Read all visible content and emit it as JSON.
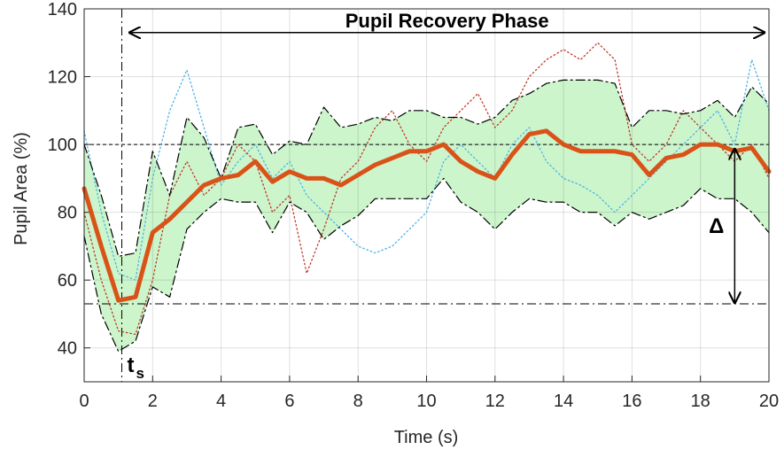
{
  "chart_data": {
    "type": "line",
    "xlabel": "Time (s)",
    "ylabel": "Pupil Area (%)",
    "xlim": [
      0,
      20
    ],
    "ylim": [
      30,
      140
    ],
    "xticks": [
      0,
      2,
      4,
      6,
      8,
      10,
      12,
      14,
      16,
      18,
      20
    ],
    "yticks": [
      40,
      60,
      80,
      100,
      120,
      140
    ],
    "grid": true,
    "x": [
      0,
      0.5,
      1,
      1.5,
      2,
      2.5,
      3,
      3.5,
      4,
      4.5,
      5,
      5.5,
      6,
      6.5,
      7,
      7.5,
      8,
      8.5,
      9,
      9.5,
      10,
      10.5,
      11,
      11.5,
      12,
      12.5,
      13,
      13.5,
      14,
      14.5,
      15,
      15.5,
      16,
      16.5,
      17,
      17.5,
      18,
      18.5,
      19,
      19.5,
      20
    ],
    "series": [
      {
        "role": "trace",
        "color": "#4db3e6",
        "values": [
          104,
          80,
          62,
          60,
          90,
          110,
          122,
          105,
          88,
          95,
          100,
          90,
          95,
          85,
          80,
          75,
          70,
          68,
          70,
          75,
          80,
          95,
          100,
          95,
          90,
          100,
          105,
          95,
          90,
          88,
          85,
          80,
          85,
          90,
          95,
          100,
          105,
          110,
          100,
          125,
          110
        ]
      },
      {
        "role": "trace",
        "color": "#c0392b",
        "values": [
          80,
          60,
          45,
          44,
          60,
          85,
          95,
          85,
          90,
          100,
          95,
          80,
          85,
          62,
          75,
          90,
          95,
          105,
          110,
          100,
          95,
          105,
          110,
          115,
          105,
          110,
          120,
          125,
          128,
          125,
          130,
          125,
          100,
          95,
          100,
          110,
          105,
          100,
          95,
          100,
          90
        ]
      },
      {
        "role": "upper",
        "color": "#000000",
        "values": [
          100,
          85,
          67,
          68,
          98,
          85,
          108,
          102,
          90,
          105,
          106,
          97,
          101,
          100,
          111,
          105,
          106,
          108,
          107,
          110,
          110,
          108,
          108,
          106,
          108,
          113,
          115,
          118,
          119,
          119,
          119,
          118,
          105,
          110,
          110,
          109,
          110,
          113,
          108,
          117,
          112
        ]
      },
      {
        "role": "lower",
        "color": "#000000",
        "values": [
          73,
          50,
          39,
          42,
          58,
          55,
          75,
          80,
          84,
          83,
          83,
          74,
          83,
          80,
          72,
          76,
          79,
          84,
          84,
          84,
          84,
          90,
          83,
          80,
          75,
          80,
          84,
          83,
          83,
          80,
          80,
          76,
          80,
          78,
          80,
          82,
          87,
          84,
          84,
          80,
          74
        ]
      },
      {
        "role": "mean",
        "color": "#d95319",
        "values": [
          87,
          70,
          54,
          55,
          74,
          78,
          83,
          88,
          90,
          91,
          95,
          89,
          92,
          90,
          90,
          88,
          91,
          94,
          96,
          98,
          98,
          100,
          95,
          92,
          90,
          97,
          103,
          104,
          100,
          98,
          98,
          98,
          97,
          91,
          96,
          97,
          100,
          100,
          98,
          99,
          92
        ]
      }
    ],
    "band_color": "#ccf5cc",
    "reference_lines": {
      "y": [
        100,
        53
      ],
      "x": [
        1.1
      ]
    },
    "annotations": [
      {
        "text": "Pupil Recovery Phase",
        "x": [
          1.3,
          19.9
        ],
        "y": 133
      },
      {
        "text": "Δ",
        "x": 19,
        "y": [
          99,
          53
        ]
      },
      {
        "text": "t",
        "subscript": "s",
        "x": 1.1,
        "y": 37
      }
    ]
  }
}
